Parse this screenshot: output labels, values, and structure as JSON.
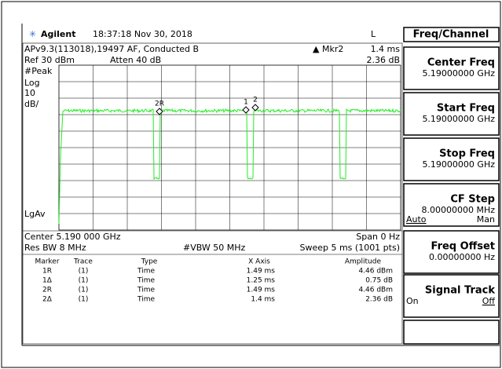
{
  "header": {
    "brand": "Agilent",
    "datetime": "18:37:18  Nov 30, 2018",
    "mode": "L"
  },
  "info": {
    "title": "APv9.3(113018),19497 AF, Conducted B",
    "marker": "▲ Mkr2",
    "marker_x": "1.4 ms",
    "ref": "Ref 30 dBm",
    "atten": "Atten 40 dB",
    "marker_y": "2.36 dB",
    "detector": "#Peak",
    "scale_type": "Log",
    "scale": "10",
    "scale_unit": "dB/",
    "avg": "LgAv",
    "center": "Center 5.190 000 GHz",
    "span": "Span 0 Hz",
    "rbw": "Res BW 8 MHz",
    "vbw": "#VBW 50 MHz",
    "sweep": "Sweep 5 ms (1001 pts)"
  },
  "plot": {
    "marker_labels": [
      "2R",
      "1",
      "2"
    ]
  },
  "marker_table": {
    "columns": [
      "Marker",
      "Trace",
      "Type",
      "X Axis",
      "Amplitude"
    ],
    "rows": [
      [
        "1R",
        "(1)",
        "Time",
        "1.49 ms",
        "4.46 dBm"
      ],
      [
        "1Δ",
        "(1)",
        "Time",
        "1.25 ms",
        "0.75 dB"
      ],
      [
        "2R",
        "(1)",
        "Time",
        "1.49 ms",
        "4.46 dBm"
      ],
      [
        "2Δ",
        "(1)",
        "Time",
        "1.4 ms",
        "2.36 dB"
      ]
    ]
  },
  "softkeys": {
    "title": "Freq/Channel",
    "keys": [
      {
        "label": "Center Freq",
        "value": "5.19000000 GHz"
      },
      {
        "label": "Start Freq",
        "value": "5.19000000 GHz"
      },
      {
        "label": "Stop Freq",
        "value": "5.19000000 GHz"
      },
      {
        "label": "CF Step",
        "value": "8.00000000 MHz",
        "left": "Auto",
        "right": "Man"
      },
      {
        "label": "Freq Offset",
        "value": "0.00000000 Hz"
      },
      {
        "label": "Signal Track",
        "left": "On",
        "right": "Off"
      }
    ]
  }
}
